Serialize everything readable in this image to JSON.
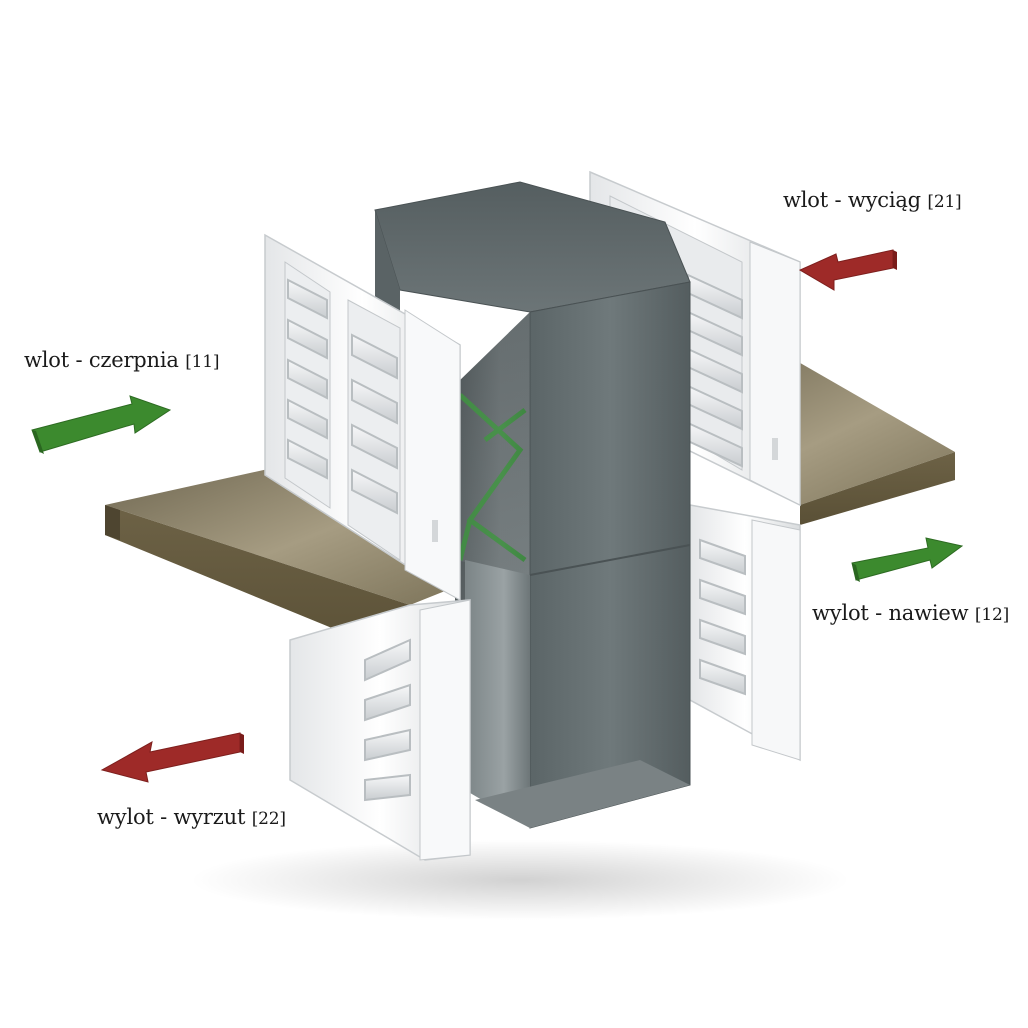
{
  "labels": {
    "intake_fresh": {
      "text": "wlot - czerpnia",
      "tag": "[11]"
    },
    "intake_exhaust": {
      "text": "wlot - wyciąg",
      "tag": "[21]"
    },
    "outlet_supply": {
      "text": "wylot - nawiew",
      "tag": "[12]"
    },
    "outlet_waste": {
      "text": "wylot - wyrzut",
      "tag": "[22]"
    }
  },
  "colors": {
    "arrow_green": "#3c8a2e",
    "arrow_red": "#9e2a28",
    "housing": "#5f6a6c",
    "frame": "#f2f3f4",
    "plate": "#8a7f62",
    "exchanger_green": "#2e8b2e"
  }
}
